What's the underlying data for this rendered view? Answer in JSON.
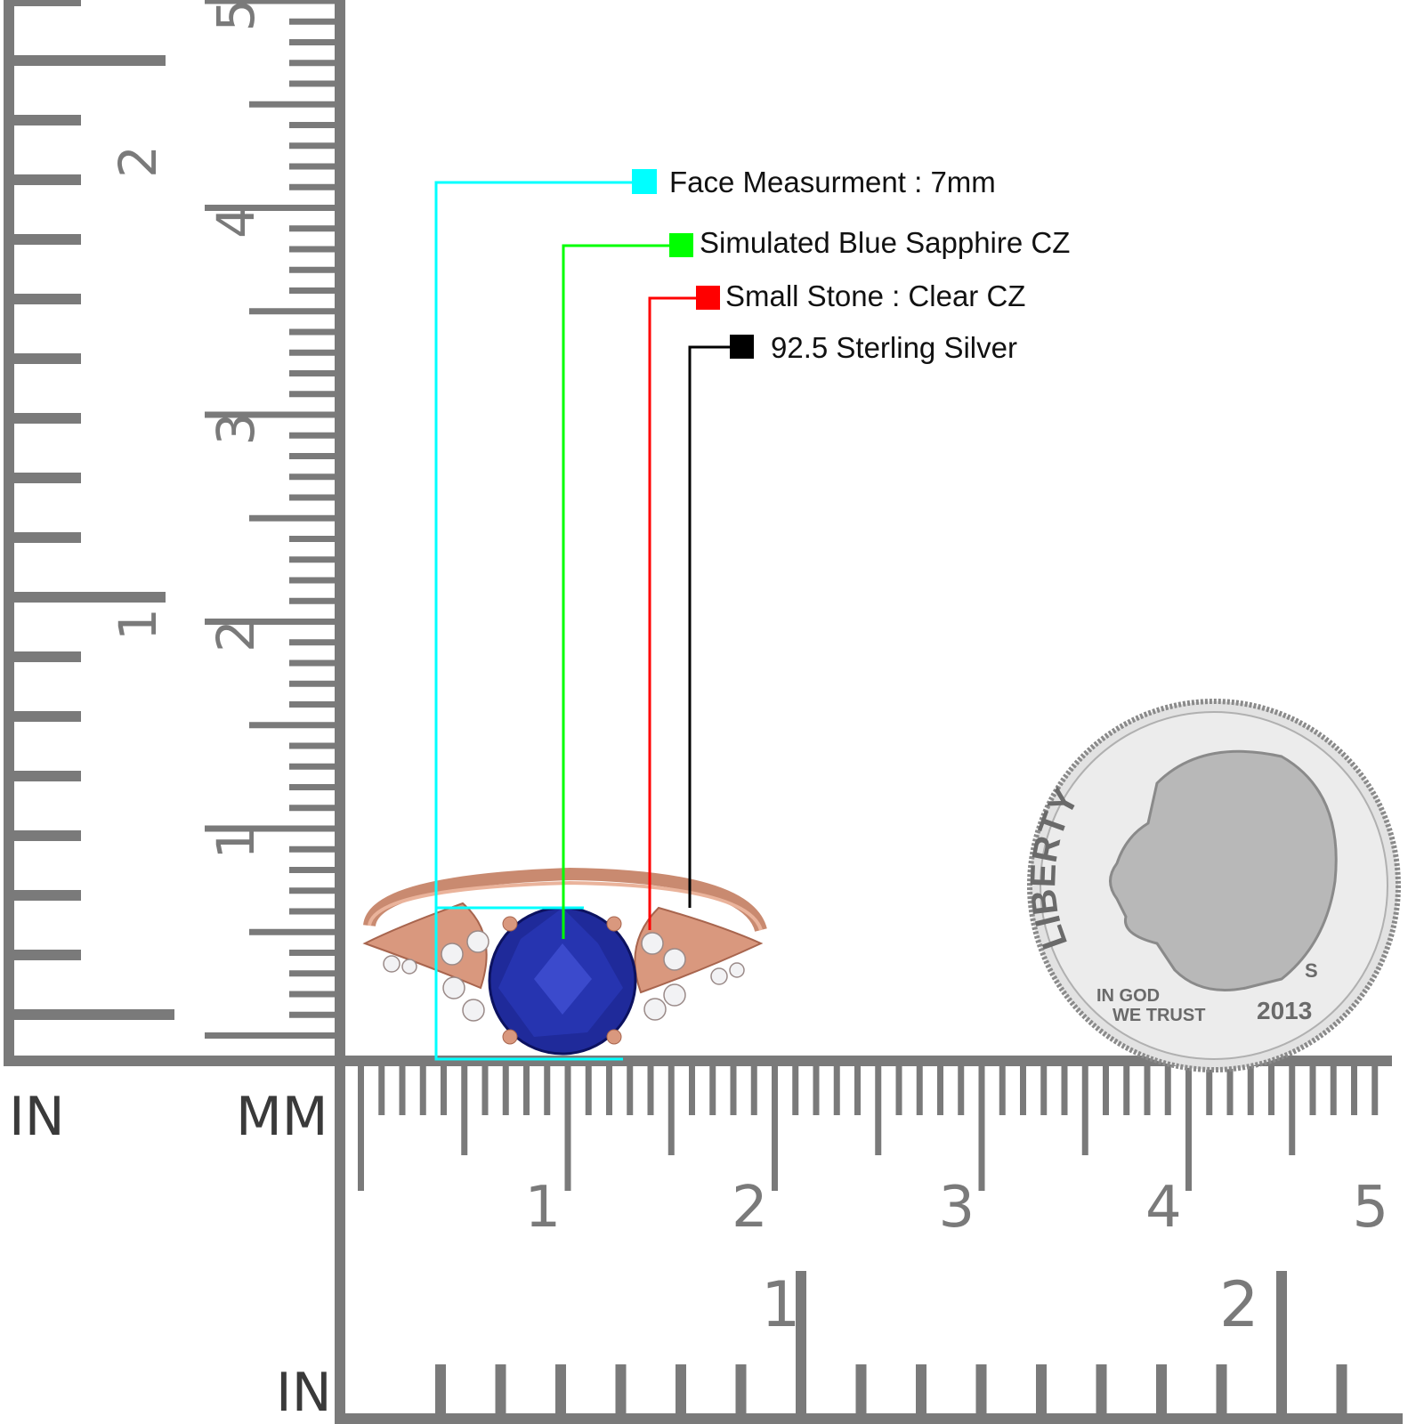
{
  "callouts": [
    {
      "label": "Face Measurment : 7mm",
      "color": "#00ffff"
    },
    {
      "label": "Simulated Blue Sapphire CZ",
      "color": "#00ff00"
    },
    {
      "label": "Small Stone : Clear CZ",
      "color": "#ff0000"
    },
    {
      "label": "92.5 Sterling Silver",
      "color": "#000000"
    }
  ],
  "ruler": {
    "color": "#7a7a7a",
    "vertical_in_label": "IN",
    "vertical_mm_label": "MM",
    "bottom_in_label": "IN",
    "mm_numbers": [
      "1",
      "2",
      "3",
      "4",
      "5"
    ],
    "in_numbers": [
      "1",
      "2"
    ]
  },
  "coin": {
    "legend": "LIBERTY",
    "motto_1": "IN GOD",
    "motto_2": "WE TRUST",
    "year": "2013",
    "mint": "S"
  },
  "colors": {
    "ring_metal": "#d9987e",
    "center_stone": "#1f2a9a"
  }
}
